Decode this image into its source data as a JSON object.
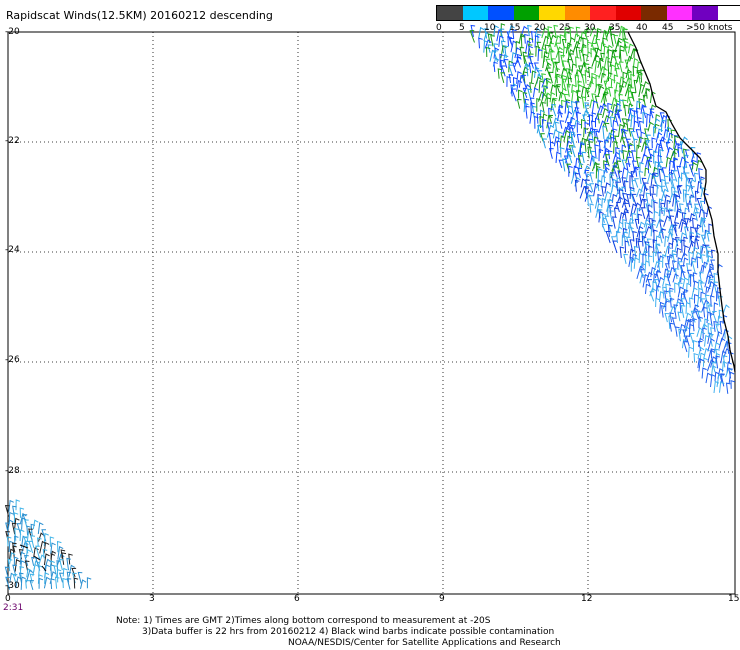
{
  "title": "Rapidscat Winds(12.5KM) 20160212 descending",
  "color_scale": {
    "colors": [
      "#444444",
      "#00c8ff",
      "#0050ff",
      "#00a000",
      "#ffd800",
      "#ff8c00",
      "#ff2020",
      "#e00000",
      "#7a2a00",
      "#ff30ff",
      "#7000c0"
    ],
    "labels": [
      "0",
      "5",
      "10",
      "15",
      "20",
      "25",
      "30",
      "35",
      "40",
      "45",
      ">50 knots"
    ]
  },
  "axes": {
    "lat_labels": [
      "-20",
      "-22",
      "-24",
      "-26",
      "-28",
      "-30"
    ],
    "lon_labels": [
      "0",
      "3",
      "6",
      "9",
      "12",
      "15"
    ]
  },
  "time_label": "2:31",
  "notes": [
    "Note: 1) Times are GMT 2)Times along bottom correspond to measurement at -20S",
    "3)Data buffer is 22 hrs from 20160212 4) Black wind barbs indicate possible contamination",
    "NOAA/NESDIS/Center for Satellite Applications and Research"
  ]
}
